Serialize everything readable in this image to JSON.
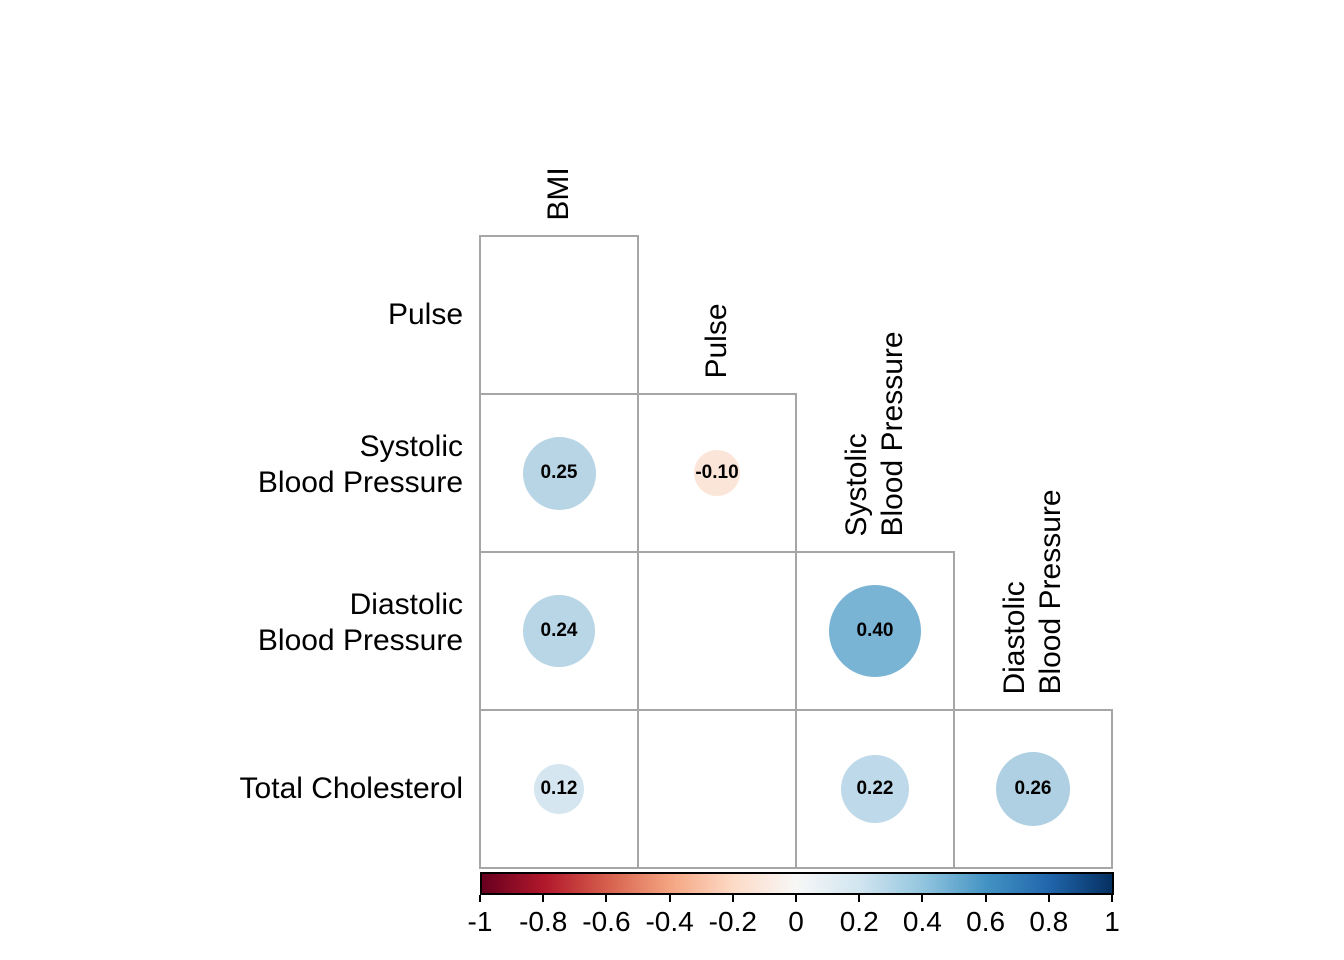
{
  "colors": {
    "background": "#ffffff",
    "grid_line": "#a6a6a6",
    "text": "#000000",
    "colorbar_border": "#000000"
  },
  "chart_data": {
    "type": "heatmap",
    "subtype": "correlation-matrix-lower-triangle-circles",
    "title": "",
    "variables": [
      "BMI",
      "Pulse",
      "Systolic Blood Pressure",
      "Diastolic Blood Pressure",
      "Total Cholesterol"
    ],
    "row_labels": [
      [
        "Pulse"
      ],
      [
        "Systolic",
        "Blood Pressure"
      ],
      [
        "Diastolic",
        "Blood Pressure"
      ],
      [
        "Total Cholesterol"
      ]
    ],
    "col_labels": [
      [
        "BMI"
      ],
      [
        "Pulse"
      ],
      [
        "Systolic",
        "Blood Pressure"
      ],
      [
        "Diastolic",
        "Blood Pressure"
      ]
    ],
    "cells": [
      {
        "row": 0,
        "col": 0,
        "value": null,
        "label": ""
      },
      {
        "row": 1,
        "col": 0,
        "value": 0.25,
        "label": "0.25",
        "color": "#b8d5e6"
      },
      {
        "row": 1,
        "col": 1,
        "value": -0.1,
        "label": "-0.10",
        "color": "#fbe5d9"
      },
      {
        "row": 2,
        "col": 0,
        "value": 0.24,
        "label": "0.24",
        "color": "#b9d6e7"
      },
      {
        "row": 2,
        "col": 1,
        "value": null,
        "label": ""
      },
      {
        "row": 2,
        "col": 2,
        "value": 0.4,
        "label": "0.40",
        "color": "#7ab4d5"
      },
      {
        "row": 3,
        "col": 0,
        "value": 0.12,
        "label": "0.12",
        "color": "#d6e6f0"
      },
      {
        "row": 3,
        "col": 1,
        "value": null,
        "label": ""
      },
      {
        "row": 3,
        "col": 2,
        "value": 0.22,
        "label": "0.22",
        "color": "#bed9e9"
      },
      {
        "row": 3,
        "col": 3,
        "value": 0.26,
        "label": "0.26",
        "color": "#aed0e2"
      }
    ],
    "colorbar": {
      "min": -1,
      "max": 1,
      "tick_labels": [
        "-1",
        "-0.8",
        "-0.6",
        "-0.4",
        "-0.2",
        "0",
        "0.2",
        "0.4",
        "0.6",
        "0.8",
        "1"
      ],
      "gradient_stops": [
        "#67001f",
        "#b2182b",
        "#d6604d",
        "#f4a582",
        "#fddbc7",
        "#f7f7f7",
        "#d1e5f0",
        "#92c5de",
        "#4393c3",
        "#2166ac",
        "#053061"
      ],
      "legend_position": "bottom",
      "grid": false
    }
  }
}
